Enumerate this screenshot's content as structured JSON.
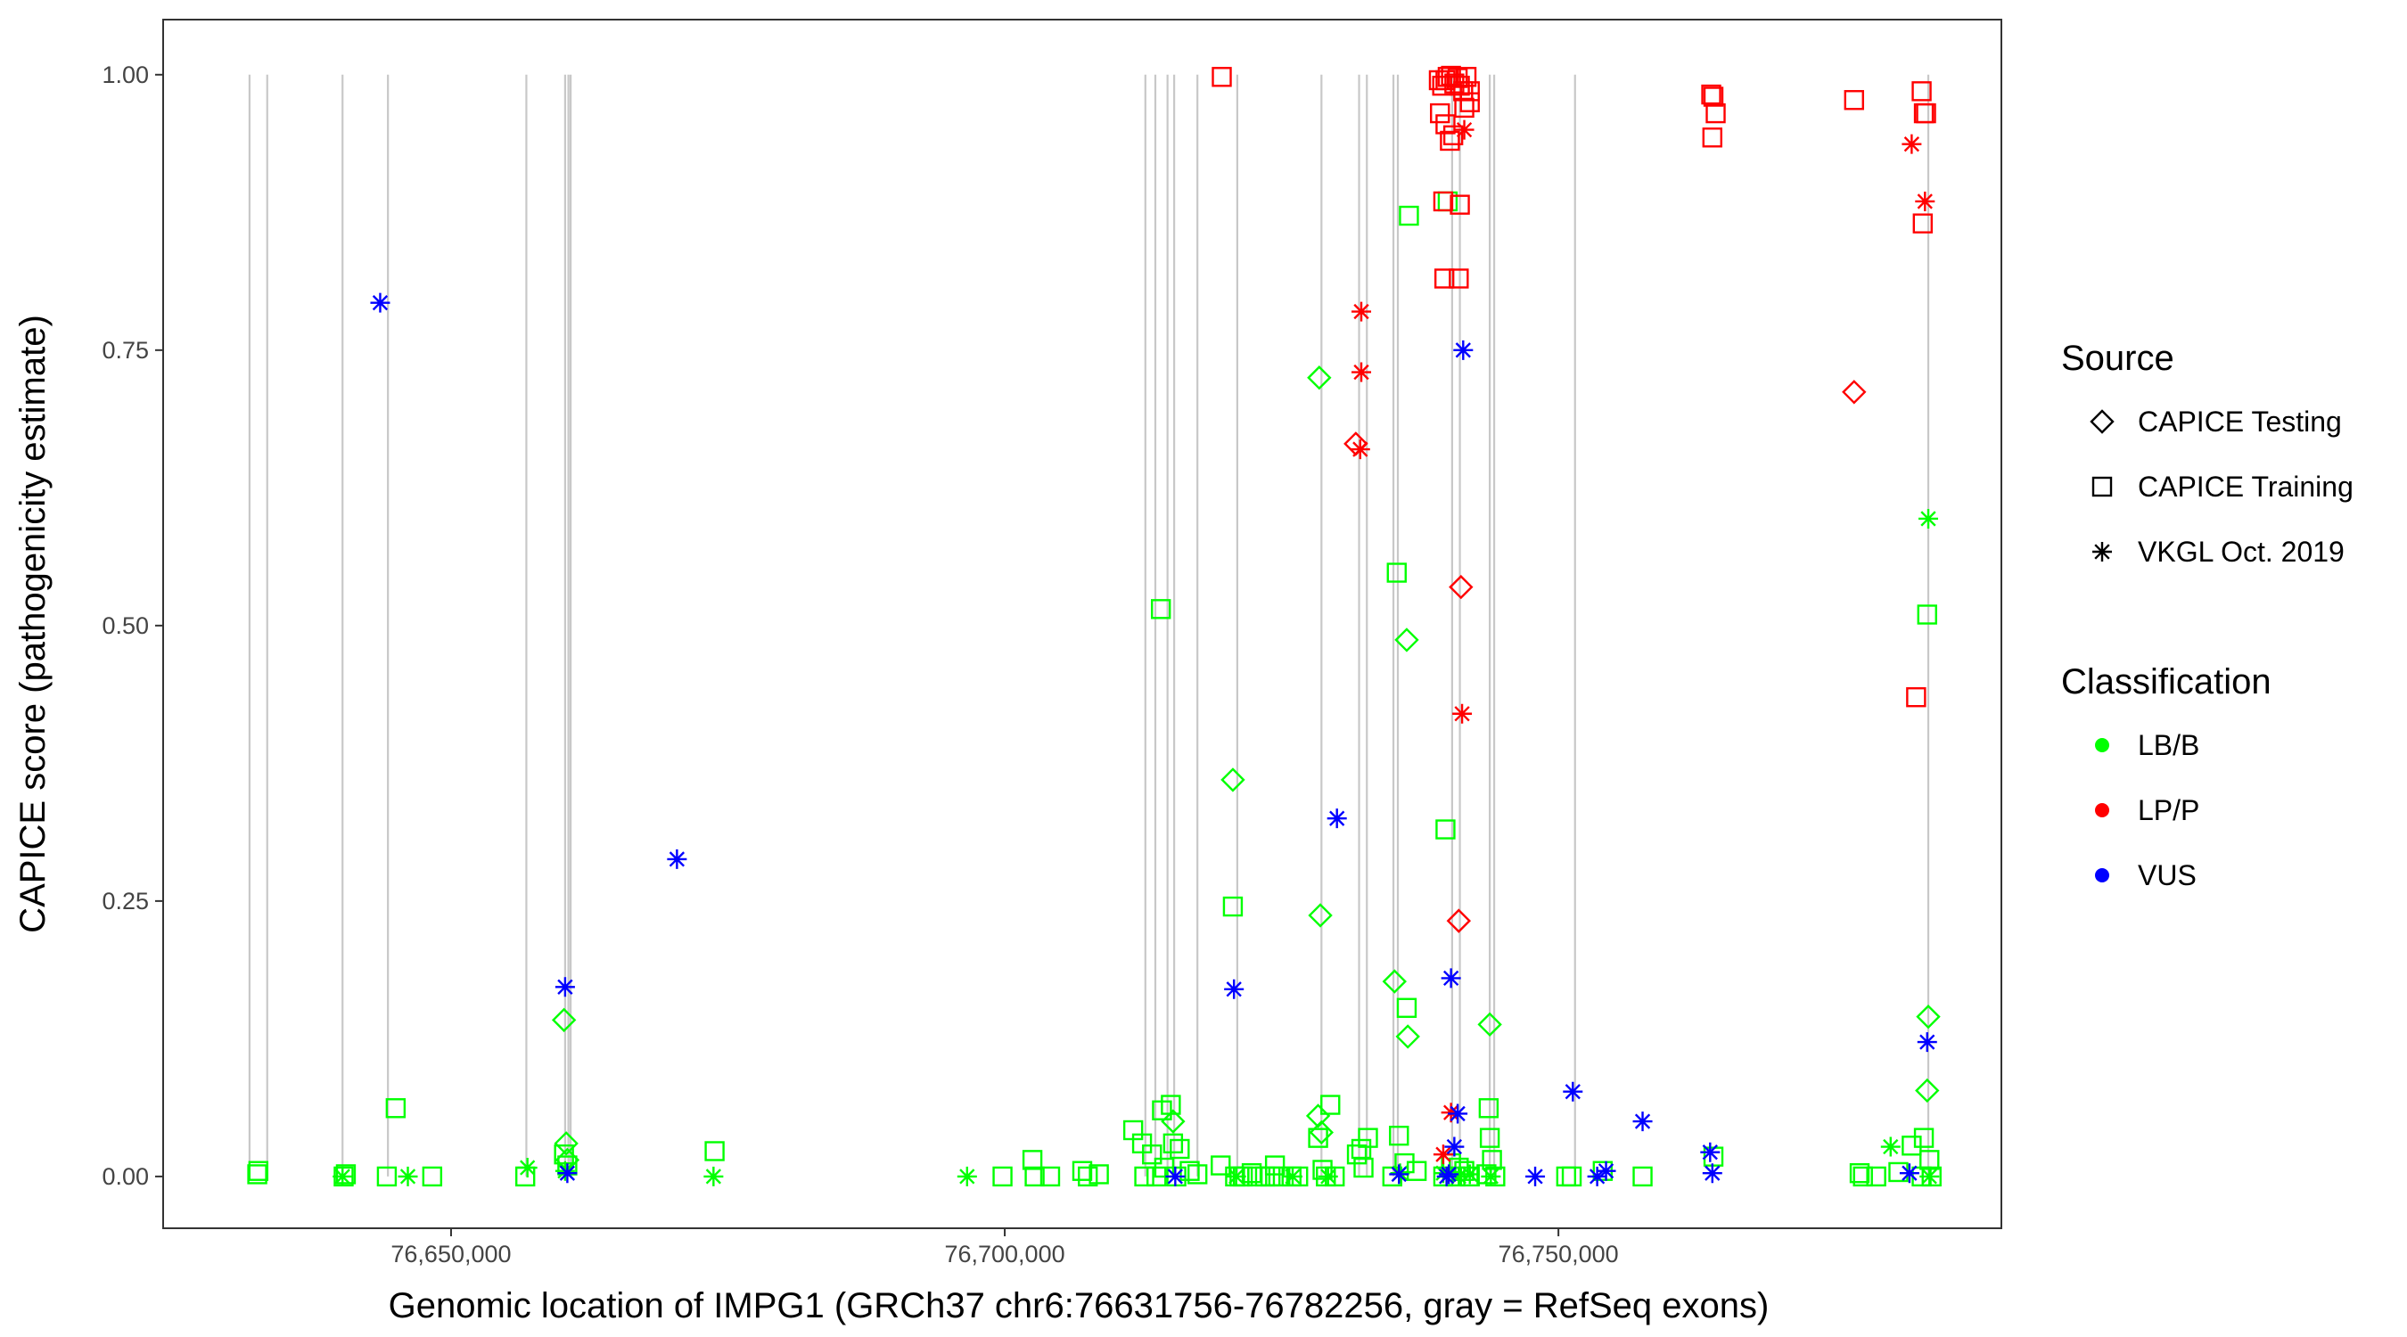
{
  "chart_data": {
    "type": "scatter",
    "xlabel": "Genomic location of IMPG1 (GRCh37 chr6:76631756-76782256, gray = RefSeq exons)",
    "ylabel": "CAPICE score (pathogenicity estimate)",
    "xlim": [
      76624000,
      76790000
    ],
    "ylim": [
      -0.047,
      1.05
    ],
    "x_ticks": [
      {
        "value": 76650000,
        "label": "76,650,000"
      },
      {
        "value": 76700000,
        "label": "76,700,000"
      },
      {
        "value": 76750000,
        "label": "76,750,000"
      }
    ],
    "y_ticks": [
      {
        "value": 0.0,
        "label": "0.00"
      },
      {
        "value": 0.25,
        "label": "0.25"
      },
      {
        "value": 0.5,
        "label": "0.50"
      },
      {
        "value": 0.75,
        "label": "0.75"
      },
      {
        "value": 1.0,
        "label": "1.00"
      }
    ],
    "grid": false,
    "exons": [
      76631800,
      76633400,
      76640200,
      76644300,
      76656800,
      76660300,
      76660600,
      76660800,
      76712700,
      76713600,
      76714700,
      76715300,
      76717400,
      76721000,
      76728600,
      76732000,
      76732700,
      76735100,
      76735500,
      76740400,
      76741100,
      76743800,
      76744200,
      76751500,
      76783400
    ],
    "legend": {
      "position": "right",
      "source_title": "Source",
      "source_items": [
        {
          "shape": "diamond",
          "label": "CAPICE Testing"
        },
        {
          "shape": "square",
          "label": "CAPICE Training"
        },
        {
          "shape": "asterisk",
          "label": "VKGL Oct. 2019"
        }
      ],
      "class_title": "Classification",
      "class_items": [
        {
          "label": "LB/B",
          "color": "#00ff00"
        },
        {
          "label": "LP/P",
          "color": "#ff0000"
        },
        {
          "label": "VUS",
          "color": "#0000ff"
        }
      ]
    },
    "series": [
      {
        "source": "CAPICE Training",
        "class": "LB/B",
        "points": [
          [
            76632500,
            0.002
          ],
          [
            76632600,
            0.005
          ],
          [
            76640300,
            0.0
          ],
          [
            76640500,
            0.002
          ],
          [
            76644200,
            0.0
          ],
          [
            76645000,
            0.062
          ],
          [
            76648300,
            0.0
          ],
          [
            76656700,
            0.0
          ],
          [
            76660200,
            0.02
          ],
          [
            76660500,
            0.01
          ],
          [
            76673800,
            0.023
          ],
          [
            76699800,
            0.0
          ],
          [
            76702500,
            0.015
          ],
          [
            76702700,
            0.0
          ],
          [
            76704100,
            0.0
          ],
          [
            76707000,
            0.005
          ],
          [
            76707500,
            0.0
          ],
          [
            76708500,
            0.002
          ],
          [
            76711600,
            0.042
          ],
          [
            76712400,
            0.03
          ],
          [
            76712600,
            0.0
          ],
          [
            76713300,
            0.02
          ],
          [
            76713700,
            0.0
          ],
          [
            76714100,
            0.515
          ],
          [
            76714200,
            0.06
          ],
          [
            76714400,
            0.008
          ],
          [
            76715000,
            0.065
          ],
          [
            76715200,
            0.03
          ],
          [
            76715500,
            0.0
          ],
          [
            76715800,
            0.025
          ],
          [
            76716700,
            0.005
          ],
          [
            76717400,
            0.002
          ],
          [
            76719500,
            0.01
          ],
          [
            76720600,
            0.245
          ],
          [
            76720800,
            0.0
          ],
          [
            76721200,
            0.0
          ],
          [
            76721500,
            0.0
          ],
          [
            76722300,
            0.003
          ],
          [
            76722800,
            0.0
          ],
          [
            76723500,
            0.0
          ],
          [
            76724000,
            0.0
          ],
          [
            76724400,
            0.01
          ],
          [
            76724700,
            0.0
          ],
          [
            76725900,
            0.0
          ],
          [
            76726500,
            0.0
          ],
          [
            76728300,
            0.035
          ],
          [
            76728700,
            0.006
          ],
          [
            76729000,
            0.0
          ],
          [
            76729400,
            0.065
          ],
          [
            76729800,
            0.0
          ],
          [
            76731800,
            0.02
          ],
          [
            76732200,
            0.025
          ],
          [
            76732400,
            0.008
          ],
          [
            76732800,
            0.035
          ],
          [
            76735000,
            0.0
          ],
          [
            76735400,
            0.548
          ],
          [
            76735600,
            0.037
          ],
          [
            76736100,
            0.012
          ],
          [
            76736300,
            0.153
          ],
          [
            76736500,
            0.872
          ],
          [
            76737200,
            0.005
          ],
          [
            76739600,
            0.0
          ],
          [
            76739800,
            0.315
          ],
          [
            76740000,
            0.885
          ],
          [
            76740300,
            0.012
          ],
          [
            76740700,
            0.0
          ],
          [
            76741000,
            0.008
          ],
          [
            76741500,
            0.005
          ],
          [
            76742000,
            0.0
          ],
          [
            76743500,
            0.002
          ],
          [
            76743700,
            0.062
          ],
          [
            76743800,
            0.035
          ],
          [
            76744000,
            0.015
          ],
          [
            76744300,
            0.0
          ],
          [
            76750700,
            0.0
          ],
          [
            76751200,
            0.0
          ],
          [
            76754000,
            0.005
          ],
          [
            76757600,
            0.0
          ],
          [
            76764000,
            0.018
          ],
          [
            76777200,
            0.003
          ],
          [
            76777500,
            0.0
          ],
          [
            76778700,
            0.0
          ],
          [
            76780700,
            0.004
          ],
          [
            76781900,
            0.028
          ],
          [
            76782800,
            0.0
          ],
          [
            76783000,
            0.035
          ],
          [
            76783300,
            0.51
          ],
          [
            76783500,
            0.015
          ],
          [
            76783700,
            0.0
          ]
        ]
      },
      {
        "source": "CAPICE Training",
        "class": "LP/P",
        "points": [
          [
            76719600,
            0.998
          ],
          [
            76739200,
            0.995
          ],
          [
            76739500,
            0.99
          ],
          [
            76739800,
            0.995
          ],
          [
            76740000,
            0.998
          ],
          [
            76740300,
            0.999
          ],
          [
            76740600,
            0.992
          ],
          [
            76740900,
            0.997
          ],
          [
            76741100,
            0.99
          ],
          [
            76741400,
            0.985
          ],
          [
            76741700,
            0.998
          ],
          [
            76742000,
            0.975
          ],
          [
            76739300,
            0.965
          ],
          [
            76739800,
            0.955
          ],
          [
            76740200,
            0.94
          ],
          [
            76740500,
            0.945
          ],
          [
            76741500,
            0.97
          ],
          [
            76742000,
            0.985
          ],
          [
            76739600,
            0.885
          ],
          [
            76741100,
            0.882
          ],
          [
            76739700,
            0.815
          ],
          [
            76741000,
            0.815
          ],
          [
            76763800,
            0.982
          ],
          [
            76764000,
            0.98
          ],
          [
            76764200,
            0.965
          ],
          [
            76763900,
            0.943
          ],
          [
            76776700,
            0.977
          ],
          [
            76782800,
            0.985
          ],
          [
            76783000,
            0.965
          ],
          [
            76783200,
            0.965
          ],
          [
            76782900,
            0.865
          ],
          [
            76782300,
            0.435
          ]
        ]
      },
      {
        "source": "CAPICE Testing",
        "class": "LB/B",
        "points": [
          [
            76660200,
            0.142
          ],
          [
            76660400,
            0.03
          ],
          [
            76660500,
            0.015
          ],
          [
            76715200,
            0.05
          ],
          [
            76720600,
            0.36
          ],
          [
            76728400,
            0.725
          ],
          [
            76728500,
            0.237
          ],
          [
            76728300,
            0.055
          ],
          [
            76728600,
            0.04
          ],
          [
            76735200,
            0.177
          ],
          [
            76736300,
            0.487
          ],
          [
            76736400,
            0.127
          ],
          [
            76743800,
            0.138
          ],
          [
            76783400,
            0.145
          ],
          [
            76783300,
            0.078
          ]
        ]
      },
      {
        "source": "CAPICE Testing",
        "class": "LP/P",
        "points": [
          [
            76731700,
            0.665
          ],
          [
            76741200,
            0.535
          ],
          [
            76741000,
            0.232
          ],
          [
            76776700,
            0.712
          ]
        ]
      },
      {
        "source": "VKGL Oct. 2019",
        "class": "LB/B",
        "points": [
          [
            76640200,
            0.0
          ],
          [
            76646100,
            0.0
          ],
          [
            76656900,
            0.008
          ],
          [
            76660300,
            0.005
          ],
          [
            76673700,
            0.0
          ],
          [
            76696600,
            0.0
          ],
          [
            76720900,
            0.0
          ],
          [
            76726000,
            0.0
          ],
          [
            76729200,
            0.0
          ],
          [
            76735700,
            0.003
          ],
          [
            76739600,
            0.003
          ],
          [
            76741000,
            0.0
          ],
          [
            76742000,
            0.002
          ],
          [
            76743900,
            0.0
          ],
          [
            76780000,
            0.027
          ],
          [
            76783400,
            0.597
          ],
          [
            76783500,
            0.0
          ]
        ]
      },
      {
        "source": "VKGL Oct. 2019",
        "class": "LP/P",
        "points": [
          [
            76732200,
            0.785
          ],
          [
            76732200,
            0.73
          ],
          [
            76732100,
            0.66
          ],
          [
            76741300,
            0.42
          ],
          [
            76739600,
            0.02
          ],
          [
            76740300,
            0.058
          ],
          [
            76741500,
            0.95
          ],
          [
            76781900,
            0.937
          ],
          [
            76783100,
            0.885
          ]
        ]
      },
      {
        "source": "VKGL Oct. 2019",
        "class": "VUS",
        "points": [
          [
            76643600,
            0.793
          ],
          [
            76670400,
            0.288
          ],
          [
            76660300,
            0.172
          ],
          [
            76660500,
            0.003
          ],
          [
            76715400,
            0.0
          ],
          [
            76720700,
            0.17
          ],
          [
            76730000,
            0.325
          ],
          [
            76735600,
            0.002
          ],
          [
            76740300,
            0.18
          ],
          [
            76741400,
            0.75
          ],
          [
            76740600,
            0.027
          ],
          [
            76740900,
            0.057
          ],
          [
            76739900,
            0.0
          ],
          [
            76740100,
            0.002
          ],
          [
            76751300,
            0.077
          ],
          [
            76747900,
            0.0
          ],
          [
            76753500,
            0.0
          ],
          [
            76754300,
            0.005
          ],
          [
            76757600,
            0.05
          ],
          [
            76763700,
            0.022
          ],
          [
            76763900,
            0.003
          ],
          [
            76781700,
            0.003
          ],
          [
            76783300,
            0.122
          ]
        ]
      }
    ]
  }
}
